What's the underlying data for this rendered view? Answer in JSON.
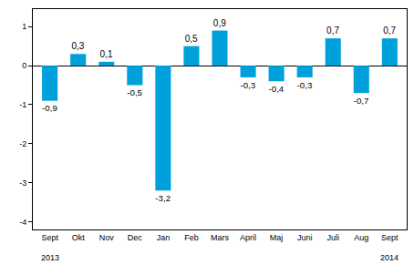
{
  "chart_data": {
    "type": "bar",
    "categories": [
      "Sept",
      "Okt",
      "Nov",
      "Dec",
      "Jan",
      "Feb",
      "Mars",
      "April",
      "Maj",
      "Juni",
      "Juli",
      "Aug",
      "Sept"
    ],
    "values": [
      -0.9,
      0.3,
      0.1,
      -0.5,
      -3.2,
      0.5,
      0.9,
      -0.3,
      -0.4,
      -0.3,
      0.7,
      -0.7,
      0.7
    ],
    "value_labels": [
      "-0,9",
      "0,3",
      "0,1",
      "-0,5",
      "-3,2",
      "0,5",
      "0,9",
      "-0,3",
      "-0,4",
      "-0,3",
      "0,7",
      "-0,7",
      "0,7"
    ],
    "data_labels": true,
    "color": "#00a0dc",
    "ylim": [
      -4.2,
      1.45
    ],
    "yticks": [
      -4,
      -3,
      -2,
      -1,
      0,
      1
    ],
    "grid": false,
    "annotations": [
      {
        "x": 0,
        "text": "2013"
      },
      {
        "x": 12,
        "text": "2014"
      }
    ]
  }
}
